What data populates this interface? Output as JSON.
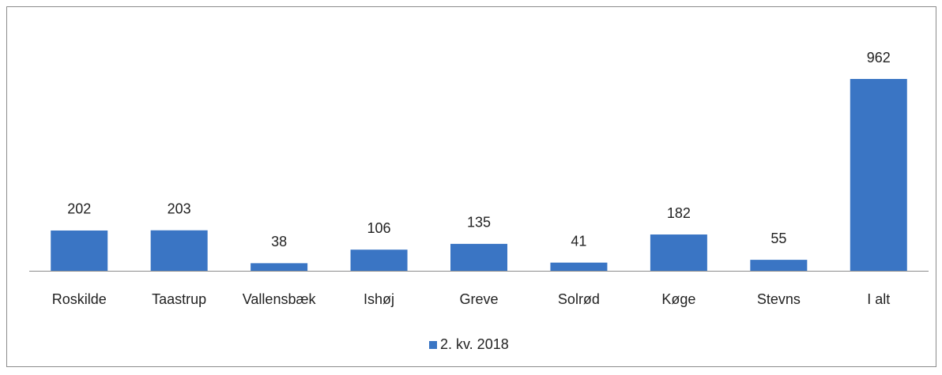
{
  "chart_data": {
    "type": "bar",
    "categories": [
      "Roskilde",
      "Taastrup",
      "Vallensbæk",
      "Ishøj",
      "Greve",
      "Solrød",
      "Køge",
      "Stevns",
      "I alt"
    ],
    "series": [
      {
        "name": "2. kv. 2018",
        "color": "#3a75c4",
        "values": [
          202,
          203,
          38,
          106,
          135,
          41,
          182,
          55,
          962
        ]
      }
    ],
    "legend": "bottom"
  }
}
